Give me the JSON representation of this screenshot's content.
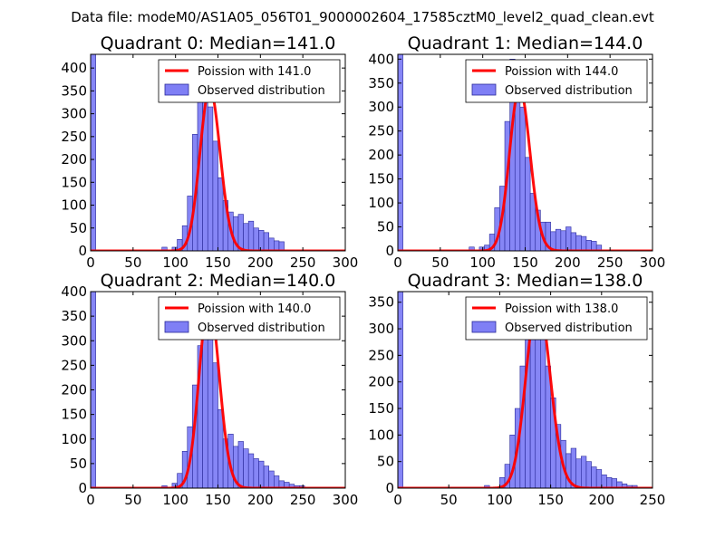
{
  "figure": {
    "suptitle": "Data file: modeM0/AS1A05_056T01_9000002604_17585cztM0_level2_quad_clean.evt"
  },
  "colors": {
    "poisson": "#ff0000",
    "bar_fill": "#7f7ff5",
    "bar_edge": "#2a2a9a",
    "frame": "#000000"
  },
  "chart_data": [
    {
      "type": "bar",
      "title": "Quadrant 0: Median=141.0",
      "median": 141.0,
      "xlim": [
        0,
        300
      ],
      "ylim": [
        0,
        430
      ],
      "xticks": [
        0,
        50,
        100,
        150,
        200,
        250,
        300
      ],
      "yticks": [
        0,
        50,
        100,
        150,
        200,
        250,
        300,
        350,
        400
      ],
      "legend": {
        "placement": "top-right",
        "entries": [
          "Poission with 141.0",
          "Observed distribution"
        ]
      },
      "bin_width": 6,
      "hist": [
        [
          0,
          430
        ],
        [
          84,
          8
        ],
        [
          96,
          8
        ],
        [
          102,
          25
        ],
        [
          108,
          55
        ],
        [
          114,
          120
        ],
        [
          120,
          255
        ],
        [
          126,
          370
        ],
        [
          132,
          385
        ],
        [
          138,
          315
        ],
        [
          144,
          240
        ],
        [
          150,
          160
        ],
        [
          156,
          110
        ],
        [
          162,
          85
        ],
        [
          168,
          75
        ],
        [
          174,
          80
        ],
        [
          180,
          60
        ],
        [
          186,
          65
        ],
        [
          192,
          50
        ],
        [
          198,
          45
        ],
        [
          204,
          40
        ],
        [
          210,
          28
        ],
        [
          216,
          22
        ],
        [
          222,
          20
        ]
      ],
      "poisson": {
        "lambda": 141.0,
        "peak": 355
      }
    },
    {
      "type": "bar",
      "title": "Quadrant 1: Median=144.0",
      "median": 144.0,
      "xlim": [
        0,
        300
      ],
      "ylim": [
        0,
        410
      ],
      "xticks": [
        0,
        50,
        100,
        150,
        200,
        250,
        300
      ],
      "yticks": [
        0,
        50,
        100,
        150,
        200,
        250,
        300,
        350,
        400
      ],
      "legend": {
        "placement": "top-right",
        "entries": [
          "Poission with 144.0",
          "Observed distribution"
        ]
      },
      "bin_width": 6,
      "hist": [
        [
          0,
          410
        ],
        [
          84,
          8
        ],
        [
          96,
          8
        ],
        [
          102,
          12
        ],
        [
          108,
          35
        ],
        [
          114,
          90
        ],
        [
          120,
          135
        ],
        [
          126,
          270
        ],
        [
          132,
          400
        ],
        [
          138,
          365
        ],
        [
          144,
          300
        ],
        [
          150,
          195
        ],
        [
          156,
          120
        ],
        [
          162,
          85
        ],
        [
          168,
          60
        ],
        [
          174,
          60
        ],
        [
          180,
          40
        ],
        [
          186,
          45
        ],
        [
          192,
          42
        ],
        [
          198,
          50
        ],
        [
          204,
          38
        ],
        [
          210,
          32
        ],
        [
          216,
          30
        ],
        [
          222,
          22
        ],
        [
          228,
          20
        ],
        [
          234,
          12
        ]
      ],
      "poisson": {
        "lambda": 144.0,
        "peak": 340
      }
    },
    {
      "type": "bar",
      "title": "Quadrant 2: Median=140.0",
      "median": 140.0,
      "xlim": [
        0,
        300
      ],
      "ylim": [
        0,
        400
      ],
      "xticks": [
        0,
        50,
        100,
        150,
        200,
        250,
        300
      ],
      "yticks": [
        0,
        50,
        100,
        150,
        200,
        250,
        300,
        350,
        400
      ],
      "legend": {
        "placement": "top-right",
        "entries": [
          "Poission with 140.0",
          "Observed distribution"
        ]
      },
      "bin_width": 6,
      "hist": [
        [
          0,
          400
        ],
        [
          84,
          5
        ],
        [
          96,
          10
        ],
        [
          102,
          30
        ],
        [
          108,
          75
        ],
        [
          114,
          125
        ],
        [
          120,
          210
        ],
        [
          126,
          290
        ],
        [
          132,
          380
        ],
        [
          138,
          330
        ],
        [
          144,
          255
        ],
        [
          150,
          160
        ],
        [
          156,
          100
        ],
        [
          162,
          110
        ],
        [
          168,
          85
        ],
        [
          174,
          95
        ],
        [
          180,
          80
        ],
        [
          186,
          70
        ],
        [
          192,
          60
        ],
        [
          198,
          55
        ],
        [
          204,
          45
        ],
        [
          210,
          35
        ],
        [
          216,
          25
        ],
        [
          222,
          15
        ],
        [
          228,
          12
        ],
        [
          234,
          8
        ],
        [
          240,
          5
        ],
        [
          246,
          5
        ]
      ],
      "poisson": {
        "lambda": 140.0,
        "peak": 380
      }
    },
    {
      "type": "bar",
      "title": "Quadrant 3: Median=138.0",
      "median": 138.0,
      "xlim": [
        0,
        250
      ],
      "ylim": [
        0,
        370
      ],
      "xticks": [
        0,
        50,
        100,
        150,
        200,
        250
      ],
      "yticks": [
        0,
        50,
        100,
        150,
        200,
        250,
        300,
        350
      ],
      "legend": {
        "placement": "top-right",
        "entries": [
          "Poission with 138.0",
          "Observed distribution"
        ]
      },
      "bin_width": 5,
      "hist": [
        [
          0,
          370
        ],
        [
          85,
          5
        ],
        [
          100,
          20
        ],
        [
          105,
          45
        ],
        [
          110,
          100
        ],
        [
          115,
          150
        ],
        [
          120,
          230
        ],
        [
          125,
          290
        ],
        [
          130,
          335
        ],
        [
          135,
          340
        ],
        [
          140,
          300
        ],
        [
          145,
          230
        ],
        [
          150,
          170
        ],
        [
          155,
          120
        ],
        [
          160,
          90
        ],
        [
          165,
          65
        ],
        [
          170,
          75
        ],
        [
          175,
          55
        ],
        [
          180,
          60
        ],
        [
          185,
          50
        ],
        [
          190,
          40
        ],
        [
          195,
          35
        ],
        [
          200,
          25
        ],
        [
          205,
          20
        ],
        [
          210,
          18
        ],
        [
          215,
          12
        ],
        [
          220,
          8
        ],
        [
          225,
          5
        ],
        [
          230,
          5
        ]
      ],
      "poisson": {
        "lambda": 138.0,
        "peak": 355
      }
    }
  ]
}
